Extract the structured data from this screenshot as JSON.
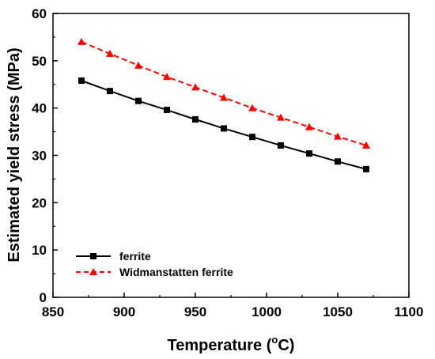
{
  "chart_data": {
    "type": "line",
    "xlabel": "Temperature (",
    "xlabel_sup": "o",
    "xlabel_unit": "C)",
    "ylabel": "Estimated yield stress (MPa)",
    "xlim": [
      850,
      1100
    ],
    "ylim": [
      0,
      60
    ],
    "xticks": [
      "850",
      "900",
      "950",
      "1000",
      "1050",
      "1100"
    ],
    "yticks": [
      "0",
      "10",
      "20",
      "30",
      "40",
      "50",
      "60"
    ],
    "grid": false,
    "legend_position": "bottom-left",
    "series": [
      {
        "name": "ferrite",
        "color": "#000000",
        "marker": "square",
        "line": "solid",
        "x": [
          870,
          890,
          910,
          930,
          950,
          970,
          990,
          1010,
          1030,
          1050,
          1070
        ],
        "y": [
          45.8,
          43.6,
          41.5,
          39.6,
          37.6,
          35.7,
          33.9,
          32.1,
          30.4,
          28.7,
          27.1
        ]
      },
      {
        "name": "Widmanstatten ferrite",
        "color": "#ff0000",
        "marker": "triangle",
        "line": "dashed",
        "x": [
          870,
          890,
          910,
          930,
          950,
          970,
          990,
          1010,
          1030,
          1050,
          1070
        ],
        "y": [
          54.0,
          51.5,
          49.0,
          46.6,
          44.4,
          42.2,
          40.0,
          38.0,
          36.0,
          34.0,
          32.1
        ]
      }
    ]
  }
}
